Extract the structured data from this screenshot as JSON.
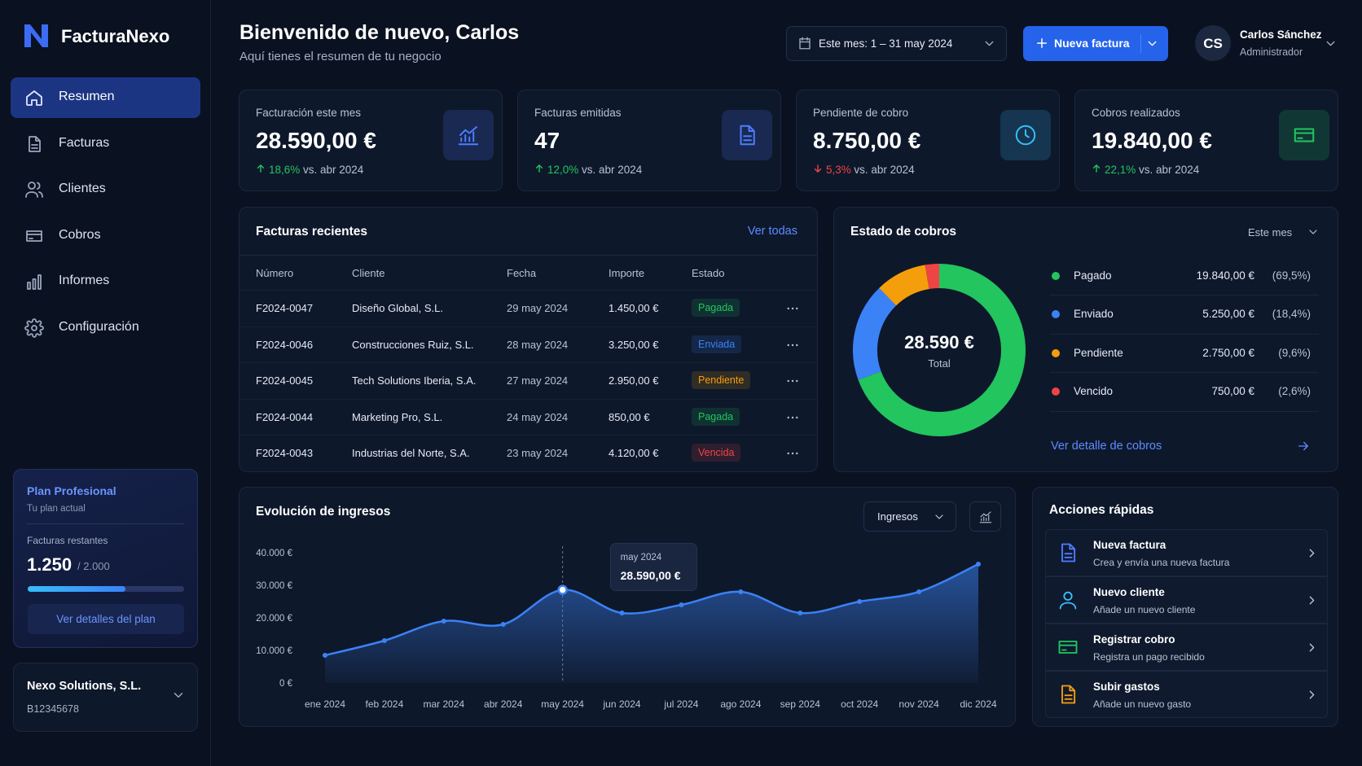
{
  "sidebar": {
    "brand": "FacturaNexo",
    "nav": [
      "Resumen",
      "Facturas",
      "Clientes",
      "Cobros",
      "Informes",
      "Configuración"
    ],
    "plan": {
      "name": "Plan Profesional",
      "caption": "Tu plan actual",
      "label": "Facturas restantes",
      "remaining": {
        "value": 1250,
        "label": "1.250"
      },
      "total": {
        "value": 2000,
        "label": "/ 2.000"
      },
      "button": "Ver detalles del plan"
    },
    "company": {
      "name": "Nexo Solutions, S.L.",
      "id": "B12345678"
    }
  },
  "header": {
    "title": "Bienvenido de nuevo, Carlos",
    "subtitle": "Aquí tienes el resumen de tu negocio",
    "period": "Este mes: 1 – 31 may 2024",
    "button": "Nueva factura",
    "user": {
      "initials": "CS",
      "name": "Carlos Sánchez",
      "role": "Administrador"
    }
  },
  "kpis": [
    {
      "title": "Facturación este mes",
      "value": "28.590,00 €",
      "change": "18,6%",
      "trend": "up",
      "compare": "vs. abr 2024",
      "color": "#4f7cff"
    },
    {
      "title": "Facturas emitidas",
      "value": 47,
      "change": "12,0%",
      "trend": "up",
      "compare": "vs. abr 2024",
      "color": "#4f7cff"
    },
    {
      "title": "Pendiente de cobro",
      "value": "8.750,00 €",
      "change": "5,3%",
      "trend": "down",
      "compare": "vs. abr 2024",
      "color": "#38bdf8"
    },
    {
      "title": "Cobros realizados",
      "value": "19.840,00 €",
      "change": "22,1%",
      "trend": "up",
      "compare": "vs. abr 2024",
      "color": "#22c55e"
    }
  ],
  "invoices": {
    "title": "Facturas recientes",
    "link": "Ver todas",
    "columns": [
      "Número",
      "Cliente",
      "Fecha",
      "Importe",
      "Estado"
    ],
    "rows": [
      [
        "F2024-0047",
        "Diseño Global, S.L.",
        "29 may 2024",
        "1.450,00 €",
        "Pagada"
      ],
      [
        "F2024-0046",
        "Construcciones Ruiz, S.L.",
        "28 may 2024",
        "3.250,00 €",
        "Enviada"
      ],
      [
        "F2024-0045",
        "Tech Solutions Iberia, S.A.",
        "27 may 2024",
        "2.950,00 €",
        "Pendiente"
      ],
      [
        "F2024-0044",
        "Marketing Pro, S.L.",
        "24 may 2024",
        "850,00 €",
        "Pagada"
      ],
      [
        "F2024-0043",
        "Industrias del Norte, S.A.",
        "23 may 2024",
        "4.120,00 €",
        "Vencida"
      ]
    ],
    "status_colors": [
      "#22c55e",
      "#3b82f6",
      "#f59e0b",
      "#22c55e",
      "#ef4444"
    ]
  },
  "chart_data": [
    {
      "type": "donut",
      "title": "Estado de cobros",
      "period": "Este mes",
      "categories": [
        "Pagado",
        "Enviado",
        "Pendiente",
        "Vencido"
      ],
      "values": [
        19840,
        5250,
        2750,
        750
      ],
      "value_labels": [
        "19.840,00 €",
        "5.250,00 €",
        "2.750,00 €",
        "750,00 €"
      ],
      "percent_labels": [
        "(69,5%)",
        "(18,4%)",
        "(9,6%)",
        "(2,6%)"
      ],
      "colors": [
        "#22c55e",
        "#3b82f6",
        "#f59e0b",
        "#ef4444"
      ],
      "center_label": "28.590 €",
      "center_sublabel": "Total",
      "link": "Ver detalle de cobros"
    },
    {
      "type": "area",
      "title": "Evolución de ingresos",
      "series_selector": "Ingresos",
      "x": [
        "ene 2024",
        "feb 2024",
        "mar 2024",
        "abr 2024",
        "may 2024",
        "jun 2024",
        "jul 2024",
        "ago 2024",
        "sep 2024",
        "oct 2024",
        "nov 2024",
        "dic 2024"
      ],
      "values": [
        8500,
        13000,
        19000,
        18000,
        28590,
        21500,
        24000,
        28000,
        21500,
        25000,
        28000,
        36500
      ],
      "color": "#3b82f6",
      "ylim": [
        0,
        40000
      ],
      "yticks": [
        {
          "value": 0,
          "label": "0 €"
        },
        {
          "value": 10000,
          "label": "10.000 €"
        },
        {
          "value": 20000,
          "label": "20.000 €"
        },
        {
          "value": 30000,
          "label": "30.000 €"
        },
        {
          "value": 40000,
          "label": "40.000 €"
        }
      ],
      "tooltip": {
        "x": "may 2024",
        "label": "28.590,00 €"
      }
    }
  ],
  "quick_actions": {
    "title": "Acciones rápidas",
    "items": [
      {
        "title": "Nueva factura",
        "description": "Crea y envía una nueva factura",
        "color": "#4f7cff"
      },
      {
        "title": "Nuevo cliente",
        "description": "Añade un nuevo cliente",
        "color": "#38bdf8"
      },
      {
        "title": "Registrar cobro",
        "description": "Registra un pago recibido",
        "color": "#22c55e"
      },
      {
        "title": "Subir gastos",
        "description": "Añade un nuevo gasto",
        "color": "#f59e0b"
      }
    ]
  }
}
